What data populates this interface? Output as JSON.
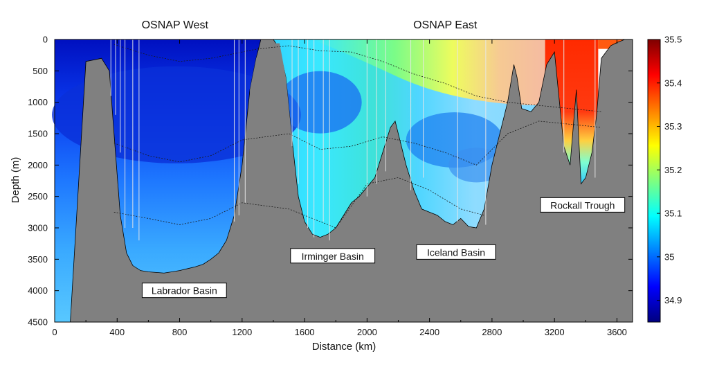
{
  "chart_data": {
    "type": "heatmap",
    "title": "",
    "xlabel": "Distance (km)",
    "ylabel": "Depth (m)",
    "xlim": [
      0,
      3700
    ],
    "ylim": [
      4500,
      0
    ],
    "x_ticks": [
      0,
      400,
      800,
      1200,
      1600,
      2000,
      2400,
      2800,
      3200,
      3600
    ],
    "y_ticks": [
      0,
      500,
      1000,
      1500,
      2000,
      2500,
      3000,
      3500,
      4000,
      4500
    ],
    "section_titles": [
      {
        "label": "OSNAP West",
        "x": 770
      },
      {
        "label": "OSNAP East",
        "x": 2500
      }
    ],
    "basin_labels": [
      {
        "label": "Labrador Basin",
        "x": 830,
        "depth": 4000
      },
      {
        "label": "Irminger Basin",
        "x": 1780,
        "depth": 3450
      },
      {
        "label": "Iceland Basin",
        "x": 2570,
        "depth": 3390
      },
      {
        "label": "Rockall Trough",
        "x": 3380,
        "depth": 2640
      }
    ],
    "colorbar": {
      "min": 34.85,
      "max": 35.5,
      "ticks": [
        "35.5",
        "35.4",
        "35.3",
        "35.2",
        "35.1",
        "35",
        "34.9"
      ],
      "tick_values": [
        35.5,
        35.4,
        35.3,
        35.2,
        35.1,
        35.0,
        34.9
      ],
      "colors": [
        "#00007f",
        "#0000ff",
        "#007fff",
        "#00ffff",
        "#7fff7f",
        "#ffff00",
        "#ff7f00",
        "#ff0000",
        "#7f0000"
      ]
    },
    "bathymetry": {
      "x": [
        0,
        100,
        200,
        300,
        350,
        380,
        420,
        460,
        500,
        550,
        600,
        650,
        700,
        750,
        800,
        850,
        900,
        950,
        1000,
        1050,
        1100,
        1150,
        1200,
        1250,
        1290,
        1320,
        1360,
        1400,
        1440,
        1480,
        1520,
        1560,
        1600,
        1650,
        1700,
        1750,
        1800,
        1850,
        1900,
        1950,
        2000,
        2050,
        2100,
        2150,
        2180,
        2200,
        2250,
        2300,
        2350,
        2400,
        2450,
        2500,
        2550,
        2600,
        2650,
        2700,
        2750,
        2800,
        2850,
        2900,
        2940,
        2960,
        2990,
        3050,
        3100,
        3150,
        3200,
        3260,
        3300,
        3340,
        3370,
        3400,
        3440,
        3470,
        3500,
        3560,
        3600,
        3650,
        3700
      ],
      "depth": [
        4500,
        4500,
        350,
        300,
        500,
        1500,
        2800,
        3400,
        3600,
        3680,
        3700,
        3710,
        3720,
        3700,
        3680,
        3650,
        3620,
        3580,
        3500,
        3400,
        3200,
        2800,
        2000,
        800,
        300,
        0,
        0,
        0,
        150,
        600,
        1600,
        2500,
        2900,
        3100,
        3150,
        3100,
        3000,
        2800,
        2600,
        2500,
        2350,
        2200,
        1800,
        1400,
        1300,
        1500,
        2000,
        2400,
        2700,
        2750,
        2800,
        2900,
        2950,
        2850,
        2980,
        3000,
        2700,
        2000,
        1500,
        1000,
        400,
        600,
        1100,
        1150,
        1000,
        400,
        200,
        1700,
        2000,
        800,
        2300,
        2200,
        1800,
        1200,
        300,
        100,
        50,
        0,
        0
      ]
    },
    "series": [
      {
        "name": "isopycnal-1",
        "x": [
          380,
          600,
          800,
          1000,
          1200,
          1300,
          1500,
          1700,
          1900,
          2100,
          2300,
          2500,
          2700,
          2900,
          3100,
          3300,
          3500
        ],
        "depth": [
          80,
          250,
          350,
          300,
          200,
          150,
          100,
          180,
          200,
          350,
          550,
          700,
          900,
          1000,
          1050,
          1100,
          1150
        ]
      },
      {
        "name": "isopycnal-2",
        "x": [
          380,
          600,
          800,
          1000,
          1200,
          1500,
          1700,
          1900,
          2100,
          2300,
          2500,
          2700,
          2900,
          3100,
          3300,
          3500
        ],
        "depth": [
          1650,
          1850,
          1950,
          1850,
          1600,
          1500,
          1750,
          1700,
          1550,
          1650,
          1800,
          2000,
          1500,
          1300,
          1350,
          1400
        ]
      },
      {
        "name": "isopycnal-3",
        "x": [
          380,
          600,
          800,
          1000,
          1200,
          1500,
          1650,
          1800,
          2000,
          2200,
          2400,
          2600,
          2750
        ],
        "depth": [
          2750,
          2850,
          2950,
          2850,
          2600,
          2700,
          2850,
          3000,
          2300,
          2200,
          2400,
          2700,
          2800
        ]
      }
    ]
  }
}
